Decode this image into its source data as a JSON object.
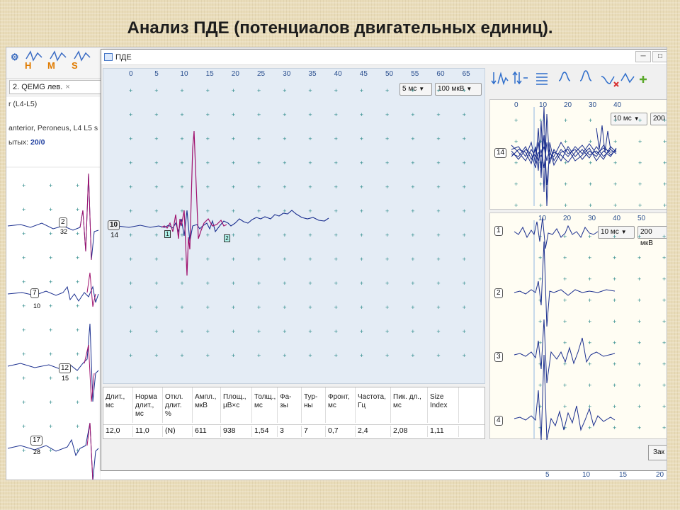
{
  "slide_title": "Анализ ПДЕ (потенциалов двигательных единиц).",
  "background_app": {
    "toolbar_letters": [
      "H",
      "M",
      "S"
    ],
    "tab_label": "2. QEMG лев.",
    "info_line1": "r (L4-L5)",
    "info_line2": "anterior, Peroneus, L4 L5 s",
    "info_line3_prefix": "ытых:",
    "info_line3_value": "20/0",
    "trace_labels": [
      {
        "id": "2",
        "count": "32"
      },
      {
        "id": "7",
        "count": "10"
      },
      {
        "id": "12",
        "count": "15"
      },
      {
        "id": "17",
        "count": "28"
      }
    ]
  },
  "dialog": {
    "title": "ПДЕ",
    "main_plot": {
      "x_ticks": [
        "0",
        "5",
        "10",
        "15",
        "20",
        "25",
        "30",
        "35",
        "40",
        "45",
        "50",
        "55",
        "60",
        "65"
      ],
      "time_scale": "5 мс",
      "amp_scale": "100 мкВ",
      "unit_id": "10",
      "unit_count": "14",
      "marker1": "1",
      "marker2": "2"
    },
    "table": {
      "headers": [
        "Длит., мс",
        "Норма длит., мс",
        "Откл. длит. %",
        "Ампл., мкВ",
        "Площ., µВ×с",
        "Толщ., мс",
        "Фа-зы",
        "Тур-ны",
        "Фронт, мс",
        "Частота, Гц",
        "Пик. дл., мс",
        "Size Index"
      ],
      "values": [
        "12,0",
        "11,0",
        "(N)",
        "611",
        "938",
        "1,54",
        "3",
        "7",
        "0,7",
        "2,4",
        "2,08",
        "1,11"
      ]
    },
    "right_top": {
      "x_ticks": [
        "0",
        "10",
        "20",
        "30",
        "40"
      ],
      "time_scale": "10 мс",
      "amp_scale": "200",
      "channel": "14"
    },
    "right_bottom": {
      "x_ticks": [
        "10",
        "20",
        "30",
        "40",
        "50"
      ],
      "time_scale": "10 мс",
      "amp_scale": "200 мкВ",
      "channels": [
        "1",
        "2",
        "3",
        "4"
      ],
      "bottom_ticks": [
        "5",
        "10",
        "15",
        "20"
      ]
    },
    "close_label": "Зак"
  },
  "colors": {
    "trace_blue": "#1b2f8f",
    "trace_magenta": "#a0126e",
    "axis_text": "#2a4f8f",
    "marker_fill": "#aef0e8"
  }
}
